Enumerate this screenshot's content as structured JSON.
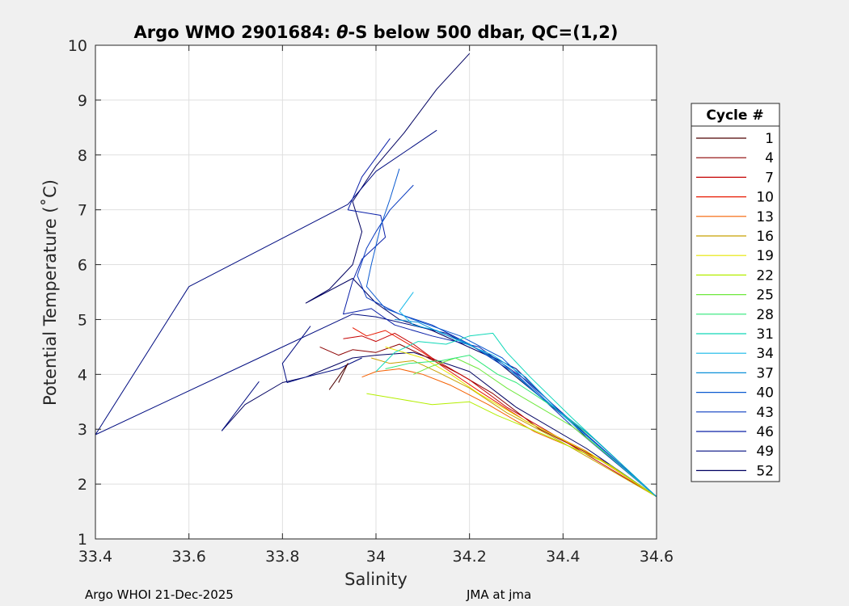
{
  "chart_data": {
    "type": "line",
    "title_prefix": "Argo WMO 2901684: ",
    "title_theta": "θ",
    "title_suffix": "-S below 500 dbar,  QC=(1,2)",
    "xlabel": "Salinity",
    "ylabel": "Potential Temperature (˚C)",
    "xlim": [
      33.4,
      34.6
    ],
    "ylim": [
      1,
      10
    ],
    "xticks": [
      33.4,
      33.6,
      33.8,
      34,
      34.2,
      34.4,
      34.6
    ],
    "xtick_labels": [
      "33.4",
      "33.6",
      "33.8",
      "34",
      "34.2",
      "34.4",
      "34.6"
    ],
    "yticks": [
      1,
      2,
      3,
      4,
      5,
      6,
      7,
      8,
      9,
      10
    ],
    "ytick_labels": [
      "1",
      "2",
      "3",
      "4",
      "5",
      "6",
      "7",
      "8",
      "9",
      "10"
    ],
    "grid": true,
    "legend": {
      "title": "Cycle #",
      "placement": "right",
      "entries": [
        {
          "name": "1",
          "color": "#4d0000"
        },
        {
          "name": "4",
          "color": "#8c0000"
        },
        {
          "name": "7",
          "color": "#c40000"
        },
        {
          "name": "10",
          "color": "#e81800"
        },
        {
          "name": "13",
          "color": "#f56000"
        },
        {
          "name": "16",
          "color": "#c8a000"
        },
        {
          "name": "19",
          "color": "#e6e600"
        },
        {
          "name": "22",
          "color": "#b4ee00"
        },
        {
          "name": "25",
          "color": "#6ee83c"
        },
        {
          "name": "28",
          "color": "#2ee878"
        },
        {
          "name": "31",
          "color": "#10d8b8"
        },
        {
          "name": "34",
          "color": "#14b8e8"
        },
        {
          "name": "37",
          "color": "#0a90d8"
        },
        {
          "name": "40",
          "color": "#0a5ad0"
        },
        {
          "name": "43",
          "color": "#0a3cc0"
        },
        {
          "name": "46",
          "color": "#0a20a8"
        },
        {
          "name": "49",
          "color": "#000c80"
        },
        {
          "name": "52",
          "color": "#000060"
        }
      ]
    },
    "series": [
      {
        "color": "#000060",
        "points": [
          [
            34.2,
            9.85
          ],
          [
            34.13,
            9.2
          ],
          [
            34.06,
            8.4
          ],
          [
            34.0,
            7.8
          ],
          [
            33.95,
            7.15
          ],
          [
            33.97,
            6.6
          ],
          [
            33.95,
            6.0
          ],
          [
            33.9,
            5.55
          ],
          [
            33.85,
            5.3
          ],
          [
            33.95,
            5.75
          ],
          [
            34.0,
            5.3
          ],
          [
            34.05,
            5.0
          ],
          [
            34.12,
            4.8
          ],
          [
            34.25,
            4.3
          ],
          [
            34.35,
            3.6
          ],
          [
            34.45,
            2.9
          ],
          [
            34.6,
            1.77
          ]
        ]
      },
      {
        "color": "#000c80",
        "points": [
          [
            34.13,
            8.45
          ],
          [
            34.0,
            7.7
          ],
          [
            33.94,
            7.1
          ],
          [
            33.6,
            5.6
          ],
          [
            33.4,
            2.9
          ],
          [
            33.55,
            3.5
          ],
          [
            33.75,
            4.3
          ],
          [
            33.95,
            5.1
          ],
          [
            34.0,
            5.05
          ],
          [
            34.15,
            4.75
          ],
          [
            34.3,
            4.1
          ],
          [
            34.45,
            2.85
          ],
          [
            34.6,
            1.77
          ]
        ]
      },
      {
        "color": "#0a20a8",
        "points": [
          [
            34.03,
            8.3
          ],
          [
            33.97,
            7.6
          ],
          [
            33.94,
            7.0
          ],
          [
            34.01,
            6.9
          ],
          [
            34.02,
            6.5
          ],
          [
            33.97,
            6.1
          ],
          [
            33.95,
            5.7
          ],
          [
            33.93,
            5.1
          ],
          [
            33.99,
            5.2
          ],
          [
            34.04,
            4.9
          ],
          [
            34.12,
            4.7
          ],
          [
            34.22,
            4.5
          ],
          [
            34.32,
            3.9
          ],
          [
            34.45,
            2.9
          ],
          [
            34.6,
            1.77
          ]
        ]
      },
      {
        "color": "#0a3cc0",
        "points": [
          [
            34.08,
            7.45
          ],
          [
            34.03,
            7.0
          ],
          [
            34.0,
            6.6
          ],
          [
            33.98,
            6.3
          ],
          [
            33.96,
            5.8
          ],
          [
            33.98,
            5.4
          ],
          [
            34.05,
            5.1
          ],
          [
            34.12,
            4.9
          ],
          [
            34.2,
            4.55
          ],
          [
            34.3,
            4.0
          ],
          [
            34.42,
            3.05
          ],
          [
            34.6,
            1.77
          ]
        ]
      },
      {
        "color": "#0a5ad0",
        "points": [
          [
            34.05,
            7.75
          ],
          [
            34.03,
            7.2
          ],
          [
            34.01,
            6.7
          ],
          [
            33.99,
            6.0
          ],
          [
            33.98,
            5.6
          ],
          [
            34.02,
            5.2
          ],
          [
            34.08,
            5.0
          ],
          [
            34.18,
            4.7
          ],
          [
            34.27,
            4.3
          ],
          [
            34.36,
            3.55
          ],
          [
            34.6,
            1.77
          ]
        ]
      },
      {
        "color": "#000060",
        "points": [
          [
            33.67,
            2.97
          ],
          [
            33.72,
            3.45
          ],
          [
            33.8,
            3.85
          ],
          [
            33.85,
            3.95
          ],
          [
            33.95,
            4.3
          ],
          [
            34.0,
            4.35
          ],
          [
            34.08,
            4.4
          ],
          [
            34.2,
            4.05
          ],
          [
            34.3,
            3.4
          ],
          [
            34.45,
            2.65
          ],
          [
            34.6,
            1.77
          ]
        ]
      },
      {
        "color": "#000c80",
        "points": [
          [
            33.86,
            4.88
          ],
          [
            33.8,
            4.2
          ],
          [
            33.81,
            3.85
          ],
          [
            33.85,
            3.95
          ],
          [
            33.92,
            4.1
          ],
          [
            33.97,
            4.3
          ]
        ]
      },
      {
        "color": "#000c80",
        "points": [
          [
            33.75,
            3.87
          ],
          [
            33.67,
            2.97
          ]
        ]
      },
      {
        "color": "#4d0000",
        "points": [
          [
            33.9,
            3.72
          ],
          [
            33.94,
            4.2
          ],
          [
            33.92,
            3.85
          ]
        ]
      },
      {
        "color": "#8c0000",
        "points": [
          [
            33.88,
            4.5
          ],
          [
            33.92,
            4.35
          ],
          [
            33.95,
            4.45
          ],
          [
            34.0,
            4.4
          ],
          [
            34.05,
            4.55
          ],
          [
            34.1,
            4.35
          ],
          [
            34.18,
            4.0
          ],
          [
            34.25,
            3.65
          ],
          [
            34.35,
            3.0
          ],
          [
            34.48,
            2.45
          ],
          [
            34.6,
            1.77
          ]
        ]
      },
      {
        "color": "#c40000",
        "points": [
          [
            33.93,
            4.65
          ],
          [
            33.97,
            4.7
          ],
          [
            34.0,
            4.6
          ],
          [
            34.04,
            4.75
          ],
          [
            34.08,
            4.55
          ],
          [
            34.12,
            4.3
          ],
          [
            34.2,
            3.9
          ],
          [
            34.28,
            3.4
          ],
          [
            34.38,
            2.9
          ],
          [
            34.6,
            1.77
          ]
        ]
      },
      {
        "color": "#e81800",
        "points": [
          [
            33.95,
            4.85
          ],
          [
            33.98,
            4.7
          ],
          [
            34.02,
            4.8
          ],
          [
            34.06,
            4.6
          ],
          [
            34.1,
            4.4
          ],
          [
            34.15,
            4.1
          ],
          [
            34.22,
            3.7
          ],
          [
            34.32,
            3.15
          ],
          [
            34.45,
            2.6
          ],
          [
            34.6,
            1.77
          ]
        ]
      },
      {
        "color": "#f56000",
        "points": [
          [
            33.97,
            3.95
          ],
          [
            34.0,
            4.05
          ],
          [
            34.05,
            4.1
          ],
          [
            34.1,
            4.0
          ],
          [
            34.16,
            3.8
          ],
          [
            34.24,
            3.45
          ],
          [
            34.34,
            2.95
          ],
          [
            34.48,
            2.45
          ],
          [
            34.6,
            1.77
          ]
        ]
      },
      {
        "color": "#c8a000",
        "points": [
          [
            33.99,
            4.3
          ],
          [
            34.03,
            4.2
          ],
          [
            34.08,
            4.25
          ],
          [
            34.13,
            4.05
          ],
          [
            34.2,
            3.75
          ],
          [
            34.28,
            3.3
          ],
          [
            34.38,
            2.85
          ],
          [
            34.6,
            1.77
          ]
        ]
      },
      {
        "color": "#e6e600",
        "points": [
          [
            34.02,
            4.5
          ],
          [
            34.06,
            4.4
          ],
          [
            34.1,
            4.3
          ],
          [
            34.16,
            4.0
          ],
          [
            34.22,
            3.65
          ],
          [
            34.32,
            3.15
          ],
          [
            34.46,
            2.55
          ],
          [
            34.6,
            1.77
          ]
        ]
      },
      {
        "color": "#b4ee00",
        "points": [
          [
            33.98,
            3.65
          ],
          [
            34.05,
            3.55
          ],
          [
            34.12,
            3.45
          ],
          [
            34.2,
            3.5
          ],
          [
            34.26,
            3.25
          ],
          [
            34.36,
            2.9
          ],
          [
            34.5,
            2.35
          ],
          [
            34.6,
            1.77
          ]
        ]
      },
      {
        "color": "#6ee83c",
        "points": [
          [
            34.08,
            4.0
          ],
          [
            34.12,
            4.15
          ],
          [
            34.17,
            4.3
          ],
          [
            34.22,
            4.1
          ],
          [
            34.28,
            3.75
          ],
          [
            34.35,
            3.4
          ],
          [
            34.42,
            3.05
          ],
          [
            34.5,
            2.5
          ],
          [
            34.6,
            1.77
          ]
        ]
      },
      {
        "color": "#2ee878",
        "points": [
          [
            34.02,
            4.1
          ],
          [
            34.07,
            4.2
          ],
          [
            34.14,
            4.25
          ],
          [
            34.2,
            4.35
          ],
          [
            34.26,
            4.0
          ],
          [
            34.3,
            3.85
          ],
          [
            34.38,
            3.4
          ],
          [
            34.47,
            2.8
          ],
          [
            34.6,
            1.77
          ]
        ]
      },
      {
        "color": "#10d8b8",
        "points": [
          [
            34.0,
            4.05
          ],
          [
            34.04,
            4.4
          ],
          [
            34.09,
            4.6
          ],
          [
            34.15,
            4.55
          ],
          [
            34.2,
            4.7
          ],
          [
            34.25,
            4.75
          ],
          [
            34.28,
            4.4
          ],
          [
            34.33,
            3.95
          ],
          [
            34.42,
            3.2
          ],
          [
            34.6,
            1.77
          ]
        ]
      },
      {
        "color": "#14b8e8",
        "points": [
          [
            34.08,
            5.5
          ],
          [
            34.05,
            5.15
          ],
          [
            34.08,
            4.9
          ],
          [
            34.13,
            4.8
          ],
          [
            34.18,
            4.6
          ],
          [
            34.25,
            4.35
          ],
          [
            34.32,
            3.95
          ],
          [
            34.4,
            3.25
          ],
          [
            34.6,
            1.77
          ]
        ]
      },
      {
        "color": "#0a90d8",
        "points": [
          [
            34.04,
            5.0
          ],
          [
            34.09,
            4.95
          ],
          [
            34.14,
            4.75
          ],
          [
            34.2,
            4.55
          ],
          [
            34.27,
            4.2
          ],
          [
            34.35,
            3.6
          ],
          [
            34.45,
            2.95
          ],
          [
            34.6,
            1.77
          ]
        ]
      }
    ]
  },
  "footer": {
    "left": "Argo WHOI 21-Dec-2025",
    "center": "JMA at jma"
  }
}
